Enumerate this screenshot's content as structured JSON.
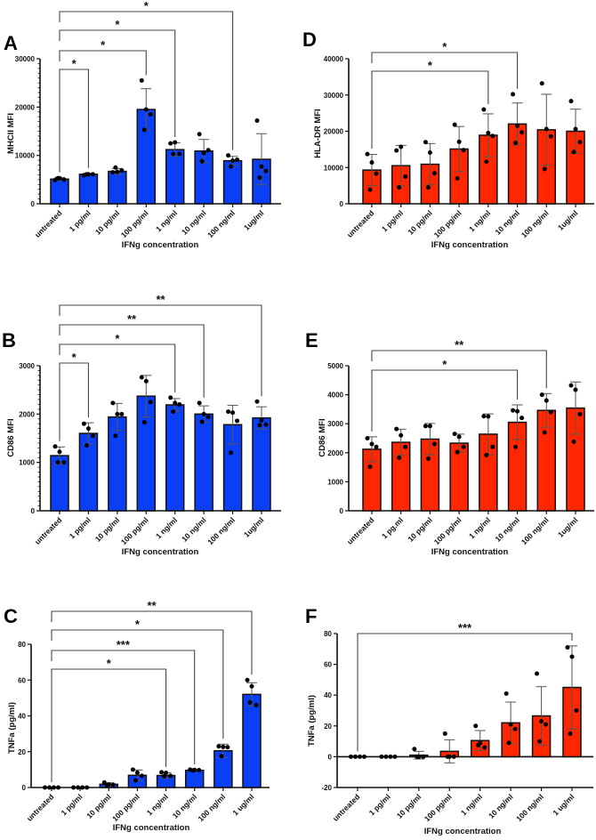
{
  "colors": {
    "blue": "#0b3ff5",
    "red": "#ff2600",
    "ink": "#111111",
    "errorbar": "#555555"
  },
  "chart_data": [
    {
      "id": "A",
      "type": "bar",
      "panel_label": "A",
      "color": "blue",
      "title": "",
      "xlabel": "IFNg concentration",
      "ylabel": "MHCII MFI",
      "categories": [
        "untreated",
        "1 pg/ml",
        "10 pg/ml",
        "100 pg/ml",
        "1 ng/ml",
        "10 ng/ml",
        "100 ng/ml",
        "1ug/ml"
      ],
      "ylim": [
        0,
        30000
      ],
      "yticks": [
        0,
        10000,
        20000,
        30000
      ],
      "minor_ticks": 10,
      "means": [
        5100,
        6100,
        6700,
        19500,
        11200,
        10900,
        8900,
        9200
      ],
      "sd": [
        300,
        200,
        600,
        4300,
        1400,
        2400,
        900,
        5300
      ],
      "points": [
        [
          4900,
          5300,
          5000,
          5300
        ],
        [
          5900,
          6100,
          6100,
          6100
        ],
        [
          6500,
          6600,
          6900,
          7500
        ],
        [
          25500,
          19500,
          18500,
          15300
        ],
        [
          12500,
          12700,
          10300,
          10300
        ],
        [
          14400,
          10500,
          11100,
          8800
        ],
        [
          10000,
          8900,
          9100,
          7700
        ],
        [
          17200,
          7700,
          6800,
          5400
        ]
      ],
      "significance": [
        {
          "from": 0,
          "to": 1,
          "label": "*"
        },
        {
          "from": 0,
          "to": 3,
          "label": "*"
        },
        {
          "from": 0,
          "to": 4,
          "label": "*"
        },
        {
          "from": 0,
          "to": 6,
          "label": "*"
        }
      ]
    },
    {
      "id": "D",
      "type": "bar",
      "panel_label": "D",
      "color": "red",
      "title": "",
      "xlabel": "IFNg concentration",
      "ylabel": "HLA-DR MFI",
      "categories": [
        "untreated",
        "1 pg/ml",
        "10 pg/ml",
        "100 pg/ml",
        "1 ng/ml",
        "10 ng/ml",
        "100 ng/ml",
        "1ug/ml"
      ],
      "ylim": [
        0,
        40000
      ],
      "yticks": [
        0,
        10000,
        20000,
        30000,
        40000
      ],
      "minor_ticks": 0,
      "means": [
        9300,
        10500,
        10900,
        15100,
        18900,
        22000,
        20400,
        20000
      ],
      "sd": [
        4300,
        5600,
        5700,
        6200,
        5900,
        5800,
        9800,
        6100
      ],
      "points": [
        [
          13700,
          11400,
          8300,
          3900
        ],
        [
          14700,
          15700,
          7500,
          4500
        ],
        [
          17000,
          14100,
          8400,
          4500
        ],
        [
          21800,
          17100,
          14800,
          7000
        ],
        [
          26000,
          19500,
          18700,
          11600
        ],
        [
          30200,
          21500,
          19700,
          16800
        ],
        [
          33200,
          20600,
          18600,
          9600
        ],
        [
          28300,
          20600,
          17000,
          14300
        ]
      ],
      "significance": [
        {
          "from": 0,
          "to": 4,
          "label": "*"
        },
        {
          "from": 0,
          "to": 5,
          "label": "*"
        }
      ]
    },
    {
      "id": "B",
      "type": "bar",
      "panel_label": "B",
      "color": "blue",
      "title": "",
      "xlabel": "IFNg concentration",
      "ylabel": "CD86 MFI",
      "categories": [
        "untreated",
        "1 pg/ml",
        "10 pg/ml",
        "100 pg/ml",
        "1 ng/ml",
        "10 ng/ml",
        "100 ng/ml",
        "1ug/ml"
      ],
      "ylim": [
        0,
        3000
      ],
      "yticks": [
        0,
        1000,
        2000,
        3000
      ],
      "minor_ticks": 10,
      "means": [
        1140,
        1600,
        1940,
        2370,
        2190,
        2000,
        1780,
        1920
      ],
      "sd": [
        180,
        220,
        280,
        430,
        130,
        170,
        400,
        230
      ],
      "points": [
        [
          1330,
          1220,
          1000,
          1000
        ],
        [
          1800,
          1700,
          1550,
          1350
        ],
        [
          2230,
          2000,
          2000,
          1550
        ],
        [
          2760,
          2680,
          2250,
          1830
        ],
        [
          2340,
          2230,
          2200,
          2050
        ],
        [
          2230,
          2000,
          1940,
          1840
        ],
        [
          2050,
          2030,
          1860,
          1200
        ],
        [
          2260,
          1870,
          1780,
          1770
        ]
      ],
      "significance": [
        {
          "from": 0,
          "to": 1,
          "label": "*"
        },
        {
          "from": 0,
          "to": 4,
          "label": "*"
        },
        {
          "from": 0,
          "to": 5,
          "label": "**"
        },
        {
          "from": 0,
          "to": 7,
          "label": "**"
        }
      ]
    },
    {
      "id": "E",
      "type": "bar",
      "panel_label": "E",
      "color": "red",
      "title": "",
      "xlabel": "IFNg concentration",
      "ylabel": "CD86 MFI",
      "categories": [
        "untreated",
        "1 pg.ml",
        "10 pg/ml",
        "100 pg/ml",
        "1 ng/ml",
        "10 ng/ml",
        "100 ng/ml",
        "1ug/ml"
      ],
      "ylim": [
        0,
        5000
      ],
      "yticks": [
        0,
        1000,
        2000,
        3000,
        4000,
        5000
      ],
      "minor_ticks": 0,
      "means": [
        2120,
        2360,
        2470,
        2330,
        2640,
        3050,
        3460,
        3540
      ],
      "sd": [
        430,
        450,
        540,
        310,
        700,
        600,
        580,
        900
      ],
      "points": [
        [
          2500,
          2300,
          2200,
          1520
        ],
        [
          2820,
          2600,
          2200,
          1830
        ],
        [
          2920,
          2920,
          2300,
          1800
        ],
        [
          2650,
          2550,
          2200,
          2020
        ],
        [
          3260,
          3250,
          2200,
          1920
        ],
        [
          3460,
          3430,
          3200,
          2200
        ],
        [
          4000,
          3800,
          3400,
          2700
        ],
        [
          4320,
          4170,
          3330,
          2380
        ]
      ],
      "significance": [
        {
          "from": 0,
          "to": 5,
          "label": "*"
        },
        {
          "from": 0,
          "to": 6,
          "label": "**"
        }
      ]
    },
    {
      "id": "C",
      "type": "bar",
      "panel_label": "C",
      "color": "blue",
      "title": "",
      "xlabel": "IFNg concentration",
      "ylabel": "TNFa (pg/ml)",
      "categories": [
        "untreated",
        "1 pg/ml",
        "10 pg/ml",
        "100 pg/ml",
        "1 ng/ml",
        "10 ng/ml",
        "100 ng/ml",
        "1 ug/ml"
      ],
      "ylim": [
        0,
        80
      ],
      "yticks": [
        0,
        20,
        40,
        60,
        80
      ],
      "minor_ticks": 0,
      "means": [
        0,
        0,
        1.8,
        6.8,
        6.7,
        9.6,
        20.5,
        52
      ],
      "sd": [
        0,
        0,
        0.8,
        3.0,
        1.5,
        0.4,
        3.7,
        6.5
      ],
      "points": [
        [
          0,
          0,
          0,
          0
        ],
        [
          0,
          0,
          0,
          0
        ],
        [
          2.8,
          1.7,
          1.5,
          1.3
        ],
        [
          10,
          8.3,
          6.5,
          4
        ],
        [
          8.5,
          8.2,
          6.5,
          6.3
        ],
        [
          10,
          9.8,
          9.7,
          9.5
        ],
        [
          23,
          22.7,
          22.5,
          17.5
        ],
        [
          60,
          56.5,
          46,
          47.5
        ]
      ],
      "significance": [
        {
          "from": 0,
          "to": 4,
          "label": "*"
        },
        {
          "from": 0,
          "to": 5,
          "label": "***"
        },
        {
          "from": 0,
          "to": 6,
          "label": "*"
        },
        {
          "from": 0,
          "to": 7,
          "label": "**"
        }
      ]
    },
    {
      "id": "F",
      "type": "bar",
      "panel_label": "F",
      "color": "red",
      "title": "",
      "xlabel": "IFNg concentration",
      "ylabel": "TNFa (pg/ml)",
      "categories": [
        "untreated",
        "1 pg/ml",
        "10 pg/ml",
        "100 pg/ml",
        "1 ng/ml",
        "10 ng/ml",
        "100 ng/ml",
        "1 ug/ml"
      ],
      "ylim": [
        -20,
        80
      ],
      "yticks": [
        -20,
        0,
        20,
        40,
        60,
        80
      ],
      "minor_ticks": 0,
      "means": [
        0,
        0,
        1,
        3.5,
        10.5,
        22,
        26.5,
        45
      ],
      "sd": [
        0,
        0,
        2.5,
        7.5,
        6.5,
        13.5,
        19,
        27
      ],
      "points": [
        [
          0,
          0,
          0,
          0
        ],
        [
          0,
          0,
          0,
          0
        ],
        [
          5,
          0,
          0,
          0
        ],
        [
          15,
          0,
          0,
          0
        ],
        [
          20,
          9,
          6,
          7.5
        ],
        [
          41,
          21,
          18,
          9
        ],
        [
          54,
          23,
          21,
          10
        ],
        [
          71,
          65,
          30,
          15
        ]
      ],
      "significance": [
        {
          "from": 0,
          "to": 7,
          "label": "***"
        }
      ]
    }
  ]
}
